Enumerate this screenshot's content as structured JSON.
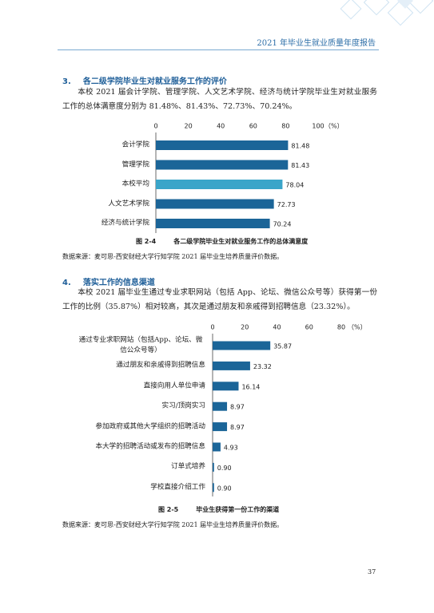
{
  "header": {
    "title": "2021 年毕业生就业质量年度报告"
  },
  "sections": [
    {
      "number": "3.",
      "title": "各二级学院毕业生对就业服务工作的评价",
      "paragraph": "本校 2021 届会计学院、管理学院、人文艺术学院、经济与统计学院毕业生对就业服务工作的总体满意度分别为 81.48%、81.43%、72.73%、70.24%。"
    },
    {
      "number": "4.",
      "title": "落实工作的信息渠道",
      "paragraph": "本校 2021 届毕业生通过专业求职网站（包括 App、论坛、微信公众号等）获得第一份工作的比例（35.87%）相对较高，其次是通过朋友和亲戚得到招聘信息（23.32%）。"
    }
  ],
  "chart_data": [
    {
      "type": "bar",
      "orientation": "horizontal",
      "figure_number": "图 2-4",
      "title": "各二级学院毕业生对就业服务工作的总体满意度",
      "categories": [
        "会计学院",
        "管理学院",
        "本校平均",
        "人文艺术学院",
        "经济与统计学院"
      ],
      "values": [
        81.48,
        81.43,
        78.04,
        72.73,
        70.24
      ],
      "colors": [
        "#1b6598",
        "#1b6598",
        "#3aa5c9",
        "#1b6598",
        "#1b6598"
      ],
      "xlim": [
        0,
        100
      ],
      "xticks": [
        0,
        20,
        40,
        60,
        80,
        100
      ],
      "unit": "（%）",
      "source": "数据来源：麦可思-西安财经大学行知学院 2021 届毕业生培养质量评价数据。"
    },
    {
      "type": "bar",
      "orientation": "horizontal",
      "figure_number": "图 2-5",
      "title": "毕业生获得第一份工作的渠道",
      "categories": [
        "通过专业求职网站（包括App、论坛、微信公众号等）",
        "通过朋友和亲戚得到招聘信息",
        "直接向用人单位申请",
        "实习/顶岗实习",
        "参加政府或其他大学组织的招聘活动",
        "本大学的招聘活动或发布的招聘信息",
        "订单式培养",
        "学校直接介绍工作"
      ],
      "values": [
        35.87,
        23.32,
        16.14,
        8.97,
        8.97,
        4.93,
        0.9,
        0.9
      ],
      "value_labels": [
        "35.87",
        "23.32",
        "16.14",
        "8.97",
        "8.97",
        "4.93",
        "0.90",
        "0.90"
      ],
      "color": "#1b6598",
      "xlim": [
        0,
        80
      ],
      "xticks": [
        0,
        20,
        40,
        60,
        80
      ],
      "unit": "（%）",
      "source": "数据来源：麦可思-西安财经大学行知学院 2021 届毕业生培养质量评价数据。"
    }
  ],
  "page_number": "37"
}
